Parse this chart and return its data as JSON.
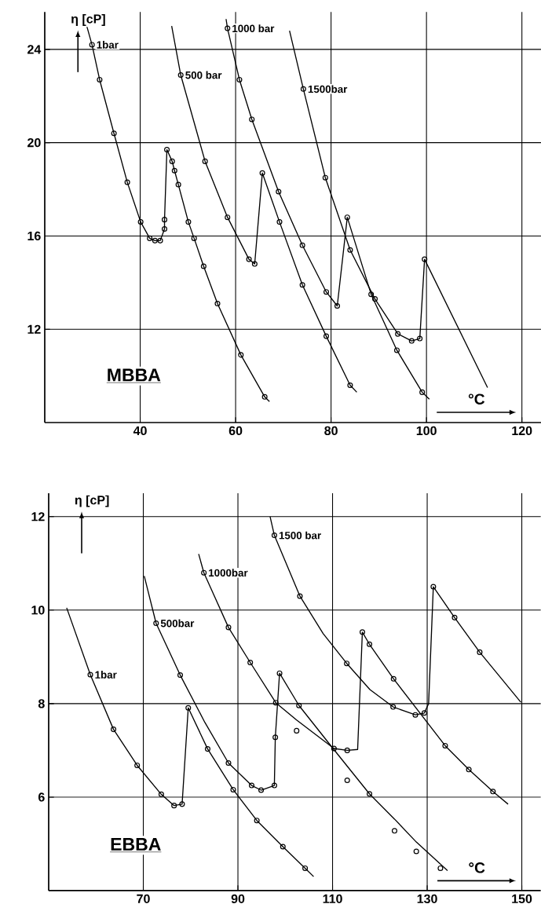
{
  "chart_data": [
    {
      "type": "line",
      "xlabel": "°C",
      "ylabel": "η [cP]",
      "annotations": [
        "MBBA"
      ],
      "xlim": [
        20,
        124
      ],
      "ylim": [
        8,
        25.6
      ],
      "xticks": [
        40,
        60,
        80,
        100,
        120
      ],
      "yticks": [
        12,
        16,
        20,
        24
      ],
      "grid": true,
      "series": [
        {
          "name": "1bar",
          "type": "line",
          "marker": "none",
          "color": "#000000",
          "x": [
            28.8,
            29.9,
            31.5,
            34.5,
            37.3,
            40.1,
            42.0,
            43.1,
            44.2,
            45.1,
            45.1,
            45.6,
            46.7,
            47.2,
            48.0,
            50.1,
            51.3,
            53.3,
            56.2,
            61.1,
            66.1,
            67.1
          ],
          "values": [
            25.0,
            24.2,
            22.7,
            20.4,
            18.3,
            16.6,
            15.9,
            15.8,
            15.8,
            16.3,
            16.7,
            19.7,
            19.2,
            18.8,
            18.2,
            16.6,
            15.9,
            14.7,
            13.1,
            10.9,
            9.1,
            8.9
          ]
        },
        {
          "type": "scatter",
          "marker": "circle",
          "color": "#000000",
          "x": [
            29.9,
            31.5,
            34.5,
            37.3,
            40.1,
            42.0,
            43.1,
            44.2,
            45.1,
            45.1,
            45.6,
            46.7,
            47.2,
            48.0,
            50.1,
            51.3,
            53.3,
            56.2,
            61.1,
            66.1
          ],
          "values": [
            24.2,
            22.7,
            20.4,
            18.3,
            16.6,
            15.9,
            15.8,
            15.8,
            16.3,
            16.7,
            19.7,
            19.2,
            18.8,
            18.2,
            16.6,
            15.9,
            14.7,
            13.1,
            10.9,
            9.1
          ]
        },
        {
          "name": "500 bar",
          "type": "line",
          "marker": "none",
          "color": "#000000",
          "x": [
            46.6,
            48.5,
            53.6,
            58.3,
            62.8,
            64.0,
            65.6,
            69.2,
            74.0,
            79.0,
            84.0,
            85.4
          ],
          "values": [
            25.0,
            22.9,
            19.2,
            16.8,
            15.0,
            14.8,
            18.7,
            16.6,
            13.9,
            11.7,
            9.6,
            9.3
          ]
        },
        {
          "type": "scatter",
          "marker": "circle",
          "color": "#000000",
          "x": [
            48.5,
            53.6,
            58.3,
            62.8,
            64.0,
            65.6,
            69.2,
            74.0,
            79.0,
            84.0
          ],
          "values": [
            22.9,
            19.2,
            16.8,
            15.0,
            14.8,
            18.7,
            16.6,
            13.9,
            11.7,
            9.6
          ]
        },
        {
          "name": "1000 bar",
          "type": "line",
          "marker": "none",
          "color": "#000000",
          "x": [
            58.0,
            58.3,
            60.8,
            63.4,
            69.0,
            74.0,
            79.0,
            81.3,
            83.4,
            88.4,
            93.8,
            99.1,
            100.6
          ],
          "values": [
            25.3,
            24.9,
            22.7,
            21.0,
            17.9,
            15.6,
            13.6,
            13.0,
            16.8,
            13.5,
            11.1,
            9.3,
            9.0
          ]
        },
        {
          "type": "scatter",
          "marker": "circle",
          "color": "#000000",
          "x": [
            58.3,
            60.8,
            63.4,
            69.0,
            74.0,
            79.0,
            81.3,
            83.4,
            88.4,
            93.8,
            99.1
          ],
          "values": [
            24.9,
            22.7,
            21.0,
            17.9,
            15.6,
            13.6,
            13.0,
            16.8,
            13.5,
            11.1,
            9.3
          ]
        },
        {
          "name": "1500bar",
          "type": "line",
          "marker": "none",
          "color": "#000000",
          "x": [
            71.3,
            74.2,
            78.8,
            84.0,
            89.2,
            94.0,
            96.9,
            98.6,
            99.6,
            112.8
          ],
          "values": [
            24.8,
            22.3,
            18.5,
            15.4,
            13.3,
            11.8,
            11.5,
            11.6,
            15.0,
            9.5
          ]
        },
        {
          "type": "scatter",
          "marker": "circle",
          "color": "#000000",
          "x": [
            74.2,
            78.8,
            84.0,
            89.2,
            94.0,
            96.9,
            98.6,
            99.6
          ],
          "values": [
            22.3,
            18.5,
            15.4,
            13.3,
            11.8,
            11.5,
            11.6,
            15.0
          ]
        }
      ]
    },
    {
      "type": "line",
      "xlabel": "°C",
      "ylabel": "η [cP]",
      "annotations": [
        "EBBA"
      ],
      "xlim": [
        50,
        154
      ],
      "ylim": [
        4,
        12.5
      ],
      "xticks": [
        70,
        90,
        110,
        130,
        150
      ],
      "yticks": [
        6,
        8,
        10,
        12
      ],
      "grid": true,
      "series": [
        {
          "name": "1bar",
          "type": "line",
          "marker": "none",
          "color": "#000000",
          "x": [
            53.8,
            58.8,
            63.7,
            68.7,
            73.8,
            76.5,
            78.2,
            79.5,
            83.6,
            89.0,
            94.0,
            99.5,
            104.2,
            106.0
          ],
          "values": [
            10.05,
            8.62,
            7.45,
            6.68,
            6.06,
            5.82,
            5.85,
            7.91,
            7.03,
            6.16,
            5.5,
            4.94,
            4.48,
            4.3
          ]
        },
        {
          "type": "scatter",
          "marker": "circle",
          "color": "#000000",
          "x": [
            58.8,
            63.7,
            68.7,
            73.8,
            76.5,
            78.2,
            79.5,
            83.6,
            89.0,
            94.0,
            99.5,
            104.2
          ],
          "values": [
            8.62,
            7.45,
            6.68,
            6.06,
            5.82,
            5.85,
            7.91,
            7.03,
            6.16,
            5.5,
            4.94,
            4.48
          ]
        },
        {
          "name": "500bar",
          "type": "line",
          "marker": "none",
          "color": "#000000",
          "x": [
            70.2,
            72.7,
            77.8,
            83.0,
            88.0,
            92.9,
            94.9,
            97.7,
            97.9,
            98.8,
            102.9,
            110.1,
            117.8,
            123.1,
            127.7,
            134.3
          ],
          "values": [
            10.73,
            9.72,
            8.61,
            7.6,
            6.73,
            6.25,
            6.15,
            6.25,
            7.28,
            8.65,
            7.96,
            7.04,
            6.07,
            5.53,
            5.04,
            4.43
          ]
        },
        {
          "type": "scatter",
          "marker": "circle",
          "color": "#000000",
          "x": [
            72.7,
            77.8,
            88.0,
            92.9,
            94.9,
            97.7,
            97.9,
            98.8,
            102.9,
            113.1,
            117.8,
            123.1,
            127.7,
            132.8
          ],
          "values": [
            9.72,
            8.61,
            6.73,
            6.25,
            6.15,
            6.25,
            7.28,
            8.65,
            7.96,
            6.36,
            6.07,
            5.28,
            4.84,
            4.48
          ]
        },
        {
          "name": "1000bar",
          "type": "line",
          "marker": "none",
          "color": "#000000",
          "x": [
            81.7,
            82.8,
            88.0,
            92.6,
            98.0,
            102.4,
            110.3,
            113.1,
            115.3,
            116.3,
            117.8,
            122.9,
            133.8,
            138.8,
            143.9,
            147.1
          ],
          "values": [
            11.2,
            10.8,
            9.63,
            8.88,
            8.02,
            7.65,
            7.04,
            7.0,
            7.02,
            9.53,
            9.27,
            8.53,
            7.1,
            6.59,
            6.12,
            5.85
          ]
        },
        {
          "type": "scatter",
          "marker": "circle",
          "color": "#000000",
          "x": [
            82.8,
            88.0,
            92.6,
            98.0,
            102.4,
            110.3,
            113.1,
            116.3,
            117.8,
            122.9,
            133.8,
            138.8,
            143.9
          ],
          "values": [
            10.8,
            9.63,
            8.88,
            8.02,
            7.42,
            7.04,
            7.0,
            9.53,
            9.27,
            8.53,
            7.1,
            6.59,
            6.12
          ]
        },
        {
          "name": "1500 bar",
          "type": "line",
          "marker": "none",
          "color": "#000000",
          "x": [
            96.8,
            97.7,
            103.1,
            108.0,
            113.0,
            117.9,
            122.8,
            127.5,
            129.4,
            130.3,
            131.3,
            135.8,
            141.1,
            149.8
          ],
          "values": [
            12.0,
            11.6,
            10.3,
            9.5,
            8.86,
            8.3,
            7.93,
            7.76,
            7.8,
            8.0,
            10.5,
            9.84,
            9.1,
            8.03
          ]
        },
        {
          "type": "scatter",
          "marker": "circle",
          "color": "#000000",
          "x": [
            97.7,
            103.1,
            113.0,
            122.8,
            127.5,
            129.4,
            131.3,
            135.8,
            141.1
          ],
          "values": [
            11.6,
            10.3,
            8.86,
            7.93,
            7.76,
            7.8,
            10.5,
            9.84,
            9.1
          ]
        }
      ]
    }
  ]
}
